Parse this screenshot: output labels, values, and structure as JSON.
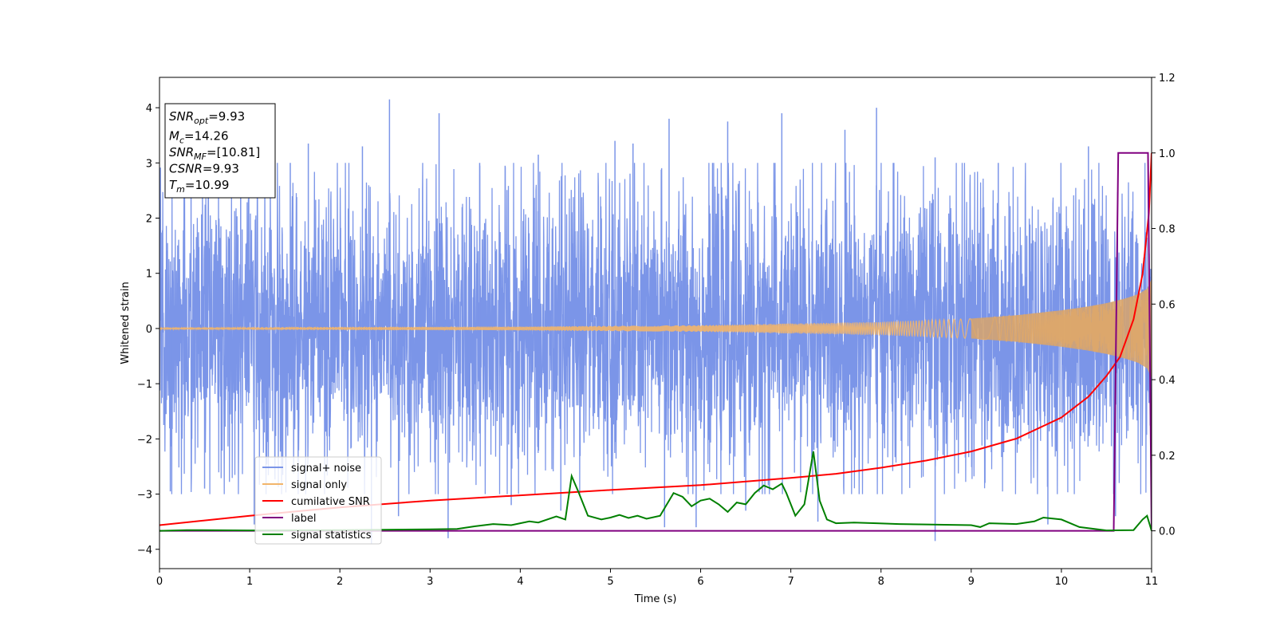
{
  "chart_data": {
    "type": "line",
    "xlabel": "Time (s)",
    "ylabel": "Whitened strain",
    "xlim": [
      0,
      11
    ],
    "ylim": [
      -4.35,
      4.55
    ],
    "y2lim": [
      -0.1,
      1.2
    ],
    "xticks": [
      0,
      1,
      2,
      3,
      4,
      5,
      6,
      7,
      8,
      9,
      10,
      11
    ],
    "yticks": [
      -4,
      -3,
      -2,
      -1,
      0,
      1,
      2,
      3,
      4
    ],
    "y2ticks": [
      "0.0",
      "0.2",
      "0.4",
      "0.6",
      "0.8",
      "1.0",
      "1.2"
    ],
    "grid": false,
    "legend_position": "lower-left",
    "series": [
      {
        "name": "signal+ noise",
        "axis": "left",
        "color": "#7b95e8",
        "style": "noise-band",
        "description_values": {
          "typical_amplitude": 1.6,
          "peak_max": 4.15,
          "peak_min": -3.9
        },
        "spikes": [
          [
            0.35,
            2.8
          ],
          [
            0.9,
            2.9
          ],
          [
            1.45,
            3.0
          ],
          [
            1.65,
            3.35
          ],
          [
            2.25,
            3.3
          ],
          [
            2.55,
            4.15
          ],
          [
            3.1,
            3.9
          ],
          [
            3.55,
            3.0
          ],
          [
            4.2,
            3.15
          ],
          [
            5.05,
            3.4
          ],
          [
            5.25,
            3.35
          ],
          [
            5.65,
            3.8
          ],
          [
            6.3,
            3.75
          ],
          [
            6.9,
            3.9
          ],
          [
            7.6,
            3.6
          ],
          [
            7.95,
            4.0
          ],
          [
            8.6,
            3.1
          ],
          [
            9.3,
            3.0
          ],
          [
            10.3,
            3.3
          ],
          [
            0.12,
            -2.95
          ],
          [
            0.5,
            -2.9
          ],
          [
            1.05,
            -3.55
          ],
          [
            2.35,
            -3.9
          ],
          [
            2.65,
            -3.4
          ],
          [
            3.2,
            -3.8
          ],
          [
            3.9,
            -3.2
          ],
          [
            4.45,
            -3.3
          ],
          [
            5.6,
            -3.6
          ],
          [
            5.95,
            -3.6
          ],
          [
            6.5,
            -3.3
          ],
          [
            7.3,
            -3.5
          ],
          [
            8.6,
            -3.85
          ],
          [
            9.85,
            -3.55
          ],
          [
            10.6,
            -3.4
          ]
        ]
      },
      {
        "name": "signal only",
        "axis": "left",
        "color": "#f2b56b",
        "style": "chirp",
        "envelope": [
          [
            0,
            0.02
          ],
          [
            4,
            0.035
          ],
          [
            6,
            0.06
          ],
          [
            8,
            0.12
          ],
          [
            9,
            0.18
          ],
          [
            9.5,
            0.24
          ],
          [
            10,
            0.33
          ],
          [
            10.3,
            0.4
          ],
          [
            10.5,
            0.46
          ],
          [
            10.7,
            0.54
          ],
          [
            10.85,
            0.62
          ],
          [
            10.95,
            0.72
          ],
          [
            11,
            0.9
          ]
        ]
      },
      {
        "name": "cumilative SNR",
        "axis": "right",
        "color": "#ff0000",
        "x": [
          0,
          1,
          2,
          3,
          4,
          5,
          6,
          7,
          7.5,
          8,
          8.5,
          9,
          9.5,
          10,
          10.3,
          10.5,
          10.65,
          10.8,
          10.9,
          10.97,
          11.0
        ],
        "values": [
          0.015,
          0.04,
          0.062,
          0.08,
          0.094,
          0.108,
          0.121,
          0.14,
          0.151,
          0.167,
          0.186,
          0.21,
          0.244,
          0.3,
          0.355,
          0.41,
          0.46,
          0.56,
          0.68,
          0.84,
          1.0
        ]
      },
      {
        "name": "label",
        "axis": "right",
        "color": "#800080",
        "x": [
          0,
          10.58,
          10.63,
          10.96,
          11.0
        ],
        "values": [
          0,
          0,
          1.0,
          1.0,
          0
        ]
      },
      {
        "name": "signal statistics",
        "axis": "right",
        "color": "#008000",
        "x": [
          0,
          0.3,
          1,
          2,
          2.5,
          3,
          3.3,
          3.5,
          3.7,
          3.9,
          4.0,
          4.1,
          4.2,
          4.4,
          4.5,
          4.57,
          4.65,
          4.75,
          4.9,
          5.0,
          5.1,
          5.2,
          5.3,
          5.4,
          5.55,
          5.7,
          5.8,
          5.9,
          6.0,
          6.1,
          6.2,
          6.3,
          6.4,
          6.5,
          6.6,
          6.7,
          6.8,
          6.9,
          6.95,
          7.05,
          7.15,
          7.25,
          7.32,
          7.4,
          7.5,
          7.7,
          7.95,
          8.2,
          8.5,
          8.7,
          9.0,
          9.1,
          9.2,
          9.5,
          9.7,
          9.8,
          10.0,
          10.2,
          10.5,
          10.8,
          10.9,
          10.95,
          11.0
        ],
        "values": [
          0,
          0.002,
          0.001,
          0.002,
          0.003,
          0.004,
          0.005,
          0.012,
          0.018,
          0.015,
          0.02,
          0.025,
          0.022,
          0.038,
          0.03,
          0.145,
          0.1,
          0.04,
          0.03,
          0.035,
          0.042,
          0.034,
          0.04,
          0.032,
          0.04,
          0.1,
          0.09,
          0.065,
          0.08,
          0.085,
          0.07,
          0.05,
          0.075,
          0.07,
          0.1,
          0.12,
          0.11,
          0.125,
          0.1,
          0.04,
          0.07,
          0.21,
          0.08,
          0.03,
          0.02,
          0.022,
          0.02,
          0.018,
          0.017,
          0.016,
          0.015,
          0.01,
          0.02,
          0.018,
          0.025,
          0.035,
          0.03,
          0.01,
          0.001,
          0.002,
          0.03,
          0.04,
          0.0
        ]
      }
    ],
    "info_box": {
      "lines": [
        {
          "label": "SNR",
          "sub": "opt",
          "value": "=9.93"
        },
        {
          "label": "M",
          "sub": "c",
          "value": "=14.26"
        },
        {
          "label": "SNR",
          "sub": "MF",
          "value": "=[10.81]"
        },
        {
          "label": "CSNR",
          "sub": "",
          "value": "=9.93"
        },
        {
          "label": "T",
          "sub": "m",
          "value": "=10.99"
        }
      ]
    }
  }
}
